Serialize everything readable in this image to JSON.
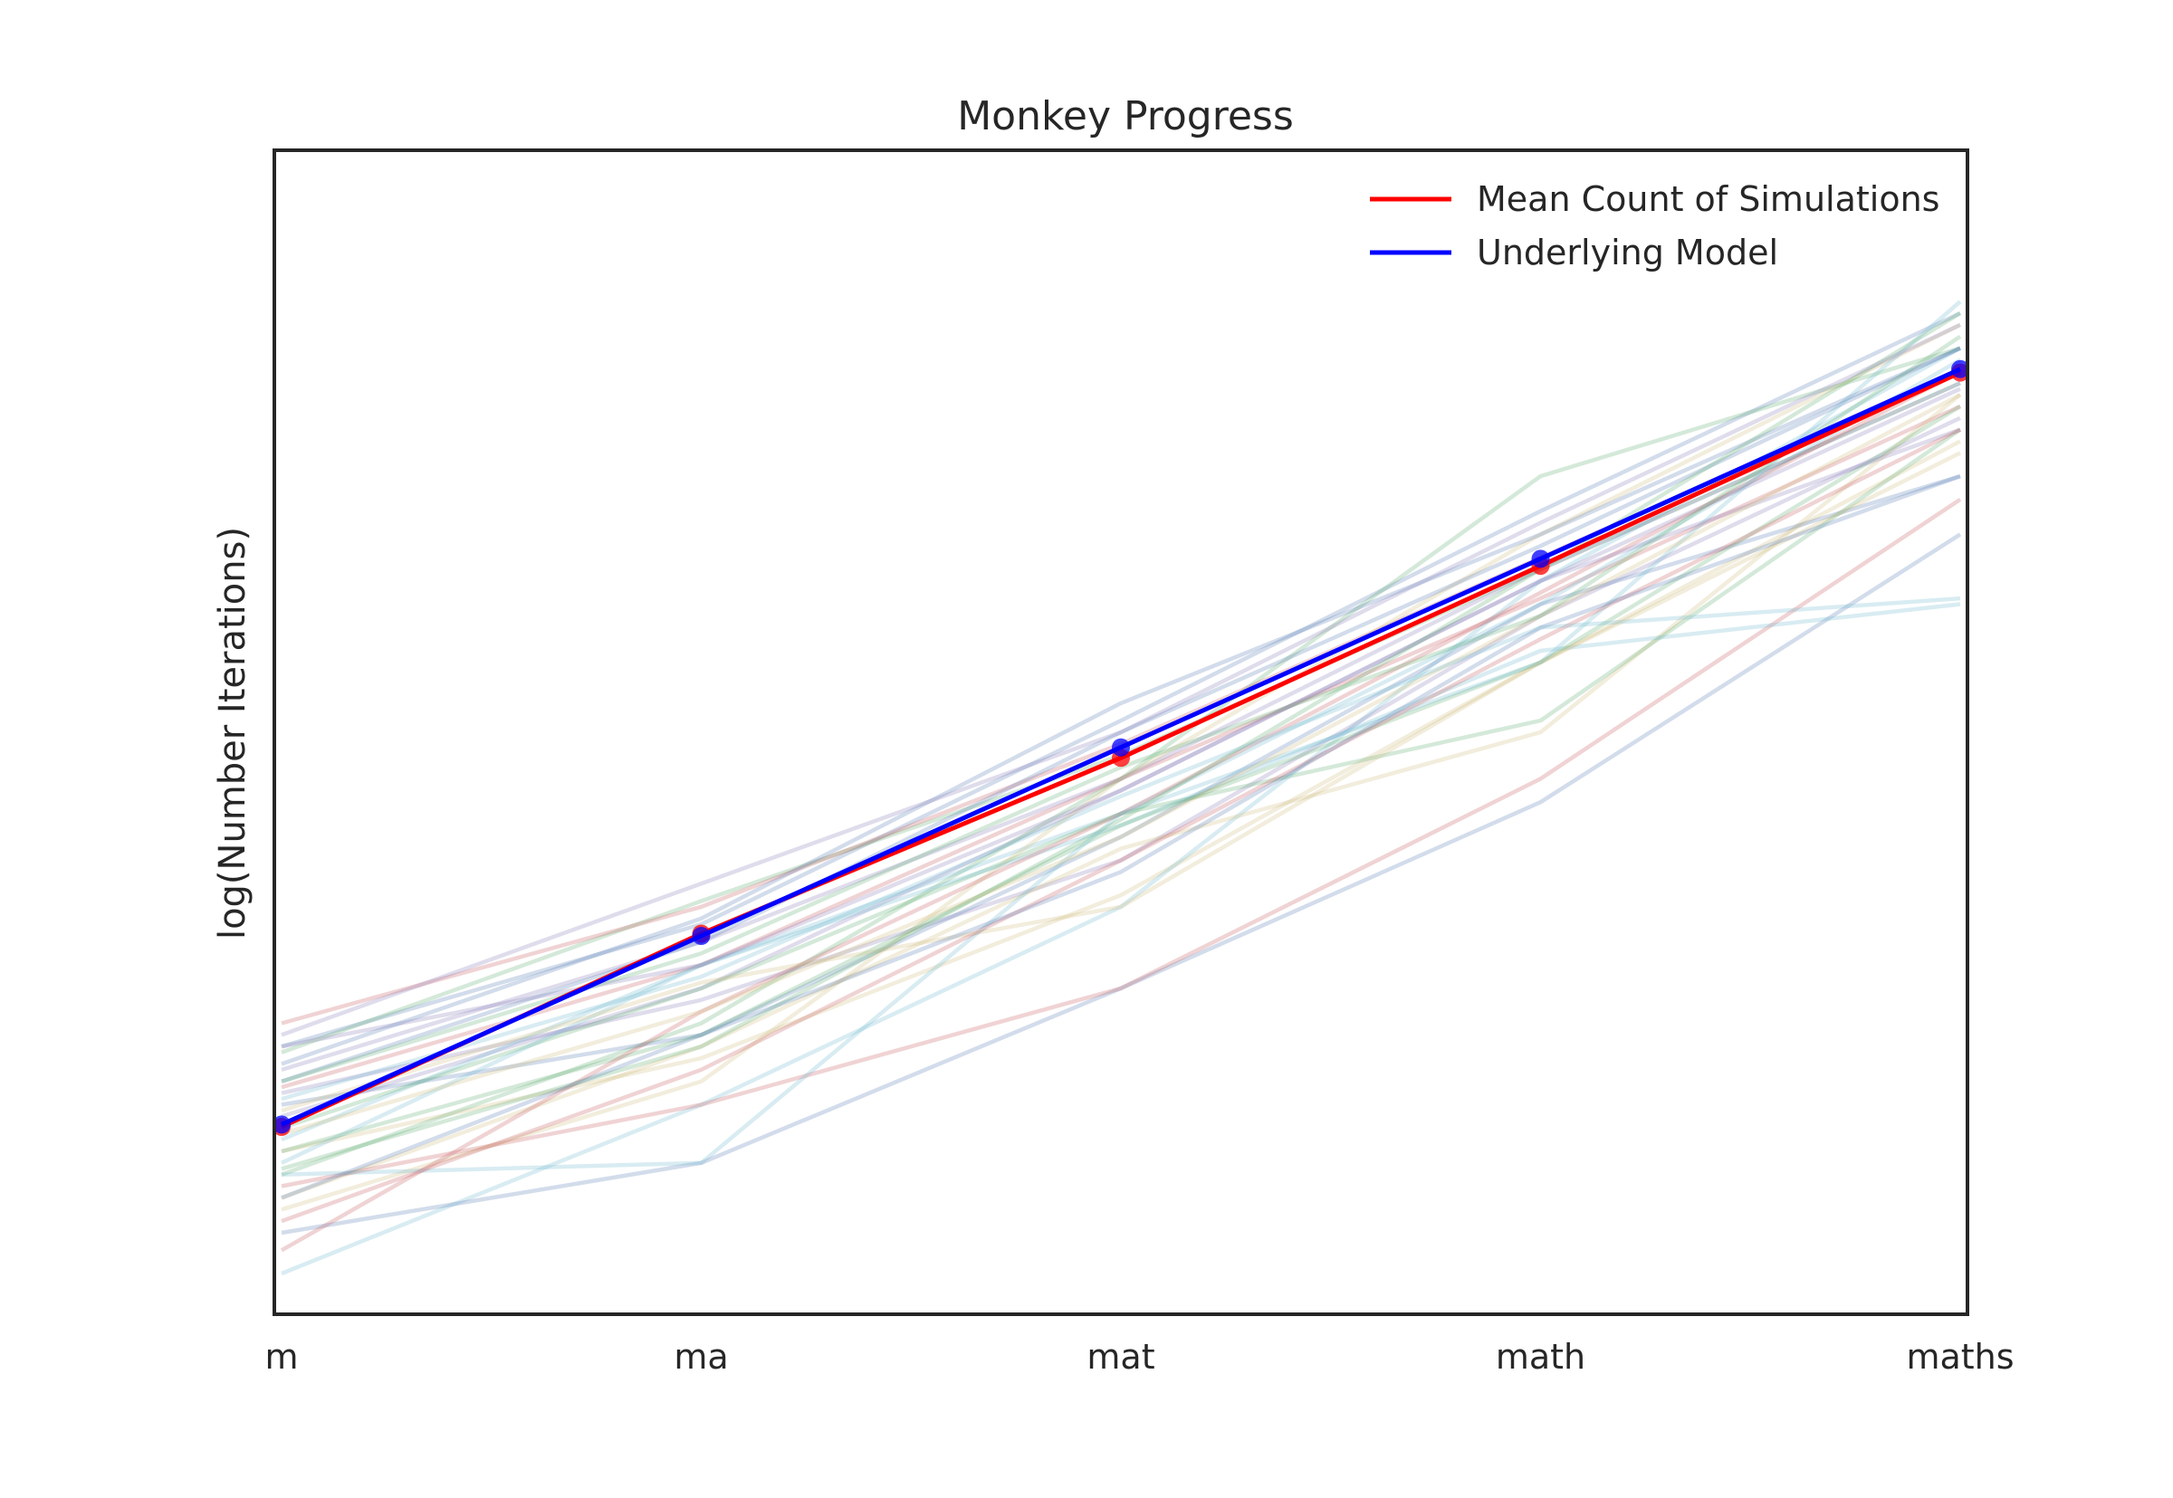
{
  "chart_data": {
    "type": "line",
    "title": "Monkey Progress",
    "xlabel": "",
    "ylabel": "log(Number Iterations)",
    "categories": [
      "m",
      "ma",
      "mat",
      "math",
      "maths"
    ],
    "ylim": [
      0,
      10
    ],
    "y_ticks_shown": false,
    "grid": false,
    "legend_position": "top-right",
    "series": [
      {
        "name": "Mean Count of Simulations",
        "color": "#ff0000",
        "values": [
          1.61,
          3.27,
          4.78,
          6.43,
          8.09
        ],
        "markers": true
      },
      {
        "name": "Underlying Model",
        "color": "#0000ff",
        "values": [
          1.63,
          3.25,
          4.87,
          6.49,
          8.12
        ],
        "markers": true
      }
    ],
    "simulations": {
      "alpha": 0.25,
      "palette": [
        "#4c72b0",
        "#55a868",
        "#c44e52",
        "#8172b2",
        "#ccb974",
        "#64b5cd"
      ],
      "runs": [
        [
          2.3,
          3.35,
          5.1,
          6.9,
          8.6
        ],
        [
          2.25,
          3.55,
          4.8,
          6.4,
          8.0
        ],
        [
          1.95,
          3.0,
          4.6,
          6.15,
          7.8
        ],
        [
          1.7,
          2.8,
          4.5,
          6.3,
          7.95
        ],
        [
          1.4,
          2.2,
          3.6,
          5.6,
          7.5
        ],
        [
          0.35,
          1.8,
          3.5,
          6.3,
          8.3
        ],
        [
          0.7,
          1.3,
          2.8,
          4.4,
          6.7
        ],
        [
          1.2,
          2.5,
          4.6,
          7.2,
          8.3
        ],
        [
          2.5,
          3.5,
          4.9,
          6.5,
          8.1
        ],
        [
          1.9,
          2.7,
          3.9,
          6.0,
          7.7
        ],
        [
          1.0,
          2.3,
          4.0,
          5.0,
          7.9
        ],
        [
          1.5,
          3.0,
          4.3,
          6.1,
          8.2
        ],
        [
          1.8,
          2.4,
          4.1,
          6.1,
          7.2
        ],
        [
          1.6,
          2.8,
          4.3,
          5.1,
          7.6
        ],
        [
          1.1,
          1.8,
          2.8,
          4.6,
          7.0
        ],
        [
          2.1,
          3.2,
          4.6,
          6.4,
          8.0
        ],
        [
          0.9,
          2.0,
          4.6,
          6.7,
          8.5
        ],
        [
          1.3,
          3.0,
          4.2,
          5.7,
          6.1
        ],
        [
          2.0,
          3.2,
          5.0,
          6.6,
          8.3
        ],
        [
          1.4,
          2.4,
          4.2,
          5.6,
          7.8
        ],
        [
          0.55,
          2.6,
          4.3,
          6.2,
          8.1
        ],
        [
          2.3,
          3.0,
          4.5,
          6.3,
          7.6
        ],
        [
          1.75,
          2.85,
          3.5,
          5.6,
          7.4
        ],
        [
          1.2,
          1.3,
          4.3,
          5.6,
          8.7
        ],
        [
          2.15,
          3.4,
          5.25,
          6.7,
          8.3
        ],
        [
          1.25,
          2.3,
          4.25,
          6.4,
          8.6
        ],
        [
          0.8,
          2.1,
          3.9,
          5.8,
          7.6
        ],
        [
          2.4,
          3.7,
          5.0,
          6.8,
          8.5
        ],
        [
          1.55,
          2.6,
          4.1,
          6.0,
          7.9
        ],
        [
          1.85,
          2.9,
          4.45,
          5.9,
          6.15
        ],
        [
          1.0,
          2.4,
          3.8,
          5.9,
          7.2
        ],
        [
          2.0,
          3.1,
          4.7,
          6.0,
          8.4
        ]
      ]
    }
  }
}
